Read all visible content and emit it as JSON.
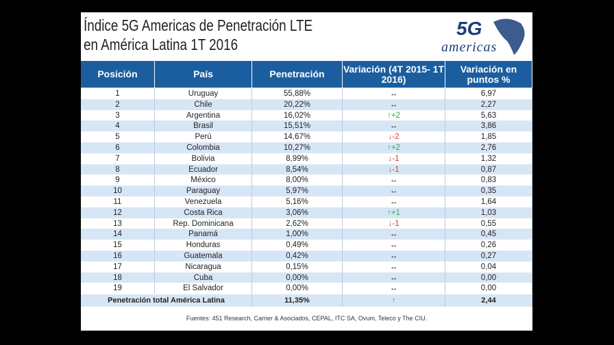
{
  "header": {
    "title_line1": "Índice 5G Americas de Penetración LTE",
    "title_line2": "en América Latina 1T 2016",
    "logo_5g": "5G",
    "logo_name": "americas"
  },
  "table": {
    "columns": [
      "Posición",
      "País",
      "Penetración",
      "Variación (4T 2015- 1T 2016)",
      "Variación en puntos %"
    ],
    "rows": [
      [
        1,
        "Uruguay",
        "55,88%",
        "↔",
        "6,97"
      ],
      [
        2,
        "Chile",
        "20,22%",
        "↔",
        "2,27"
      ],
      [
        3,
        "Argentina",
        "16,02%",
        "↑+2",
        "5,63"
      ],
      [
        4,
        "Brasil",
        "15,51%",
        "↔",
        "3,86"
      ],
      [
        5,
        "Perú",
        "14,67%",
        "↓-2",
        "1,85"
      ],
      [
        6,
        "Colombia",
        "10,27%",
        "↑+2",
        "2,76"
      ],
      [
        7,
        "Bolivia",
        "8,99%",
        "↓-1",
        "1,32"
      ],
      [
        8,
        "Ecuador",
        "8,54%",
        "↓-1",
        "0,87"
      ],
      [
        9,
        "México",
        "8,00%",
        "↔",
        "0,83"
      ],
      [
        10,
        "Paraguay",
        "5,97%",
        "↔",
        "0,35"
      ],
      [
        11,
        "Venezuela",
        "5,16%",
        "↔",
        "1,64"
      ],
      [
        12,
        "Costa Rica",
        "3,06%",
        "↑+1",
        "1,03"
      ],
      [
        13,
        "Rep. Dominicana",
        "2,62%",
        "↓-1",
        "0,55"
      ],
      [
        14,
        "Panamá",
        "1,00%",
        "↔",
        "0,45"
      ],
      [
        15,
        "Honduras",
        "0,49%",
        "↔",
        "0,26"
      ],
      [
        16,
        "Guatemala",
        "0,42%",
        "↔",
        "0,27"
      ],
      [
        17,
        "Nicaragua",
        "0,15%",
        "↔",
        "0,04"
      ],
      [
        18,
        "Cuba",
        "0,00%",
        "↔",
        "0,00"
      ],
      [
        19,
        "El Salvador",
        "0,00%",
        "↔",
        "0,00"
      ]
    ],
    "total": [
      "Penetración total América Latina",
      "11,35%",
      "↑",
      "2,44"
    ]
  },
  "footer": "Fuentes: 451 Research,  Carrier & Asociados, CEPAL, ITC SA, Ovum, Teleco y The CIU."
}
